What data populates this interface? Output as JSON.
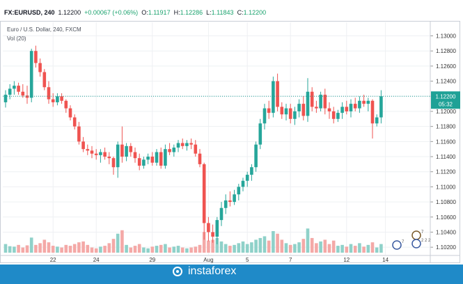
{
  "header": {
    "symbol": "FX:EURUSD, 240",
    "last": "1.12200",
    "change": "+0.00067 (+0.06%)",
    "o_label": "O:",
    "o_value": "1.11917",
    "h_label": "H:",
    "h_value": "1.12286",
    "l_label": "L:",
    "l_value": "1.11843",
    "c_label": "C:",
    "c_value": "1.12200"
  },
  "legend": {
    "title": "Euro / U.S. Dollar, 240, FXCM",
    "volume": "Vol (20)"
  },
  "price_tag": {
    "price": "1.12200",
    "countdown": "05:32"
  },
  "watermark": "instaforex",
  "event_flags": [
    "7",
    "2 2 2",
    "7"
  ],
  "colors": {
    "up": "#26a69a",
    "down": "#ef5350",
    "up_vol": "#8fd1c9",
    "down_vol": "#f4a9a7",
    "grid": "#eef0f3",
    "axis_text": "#333333",
    "footer": "#1f8ac8",
    "price_tag": "#1fa196"
  },
  "chart_data": {
    "type": "candlestick",
    "y_ticks": [
      "1.13000",
      "1.12800",
      "1.12600",
      "1.12400",
      "1.12200",
      "1.12000",
      "1.11800",
      "1.11600",
      "1.11400",
      "1.11200",
      "1.11000",
      "1.10800",
      "1.10600",
      "1.10400",
      "1.10200"
    ],
    "ylim": [
      1.101,
      1.1318
    ],
    "x_ticks": [
      {
        "label": "22",
        "index": 11
      },
      {
        "label": "24",
        "index": 21
      },
      {
        "label": "29",
        "index": 34
      },
      {
        "label": "Aug",
        "index": 47
      },
      {
        "label": "5",
        "index": 56
      },
      {
        "label": "7",
        "index": 66
      },
      {
        "label": "12",
        "index": 79
      },
      {
        "label": "14",
        "index": 88
      }
    ],
    "last_price": 1.122,
    "candles": [
      {
        "o": 1.1212,
        "h": 1.1228,
        "l": 1.1205,
        "c": 1.1222,
        "v": 20
      },
      {
        "o": 1.1222,
        "h": 1.1236,
        "l": 1.1216,
        "c": 1.123,
        "v": 15
      },
      {
        "o": 1.123,
        "h": 1.124,
        "l": 1.1222,
        "c": 1.1234,
        "v": 14
      },
      {
        "o": 1.1234,
        "h": 1.1238,
        "l": 1.1222,
        "c": 1.1226,
        "v": 18
      },
      {
        "o": 1.1226,
        "h": 1.1236,
        "l": 1.1218,
        "c": 1.1221,
        "v": 12
      },
      {
        "o": 1.1221,
        "h": 1.1234,
        "l": 1.121,
        "c": 1.1218,
        "v": 17
      },
      {
        "o": 1.1218,
        "h": 1.1283,
        "l": 1.1212,
        "c": 1.128,
        "v": 35
      },
      {
        "o": 1.128,
        "h": 1.1287,
        "l": 1.1258,
        "c": 1.1264,
        "v": 18
      },
      {
        "o": 1.1264,
        "h": 1.127,
        "l": 1.1246,
        "c": 1.1252,
        "v": 22
      },
      {
        "o": 1.1252,
        "h": 1.1256,
        "l": 1.1228,
        "c": 1.1232,
        "v": 30
      },
      {
        "o": 1.1232,
        "h": 1.124,
        "l": 1.121,
        "c": 1.1216,
        "v": 24
      },
      {
        "o": 1.1216,
        "h": 1.1224,
        "l": 1.1206,
        "c": 1.1212,
        "v": 16
      },
      {
        "o": 1.1212,
        "h": 1.1224,
        "l": 1.1208,
        "c": 1.122,
        "v": 14
      },
      {
        "o": 1.122,
        "h": 1.1224,
        "l": 1.121,
        "c": 1.1214,
        "v": 12
      },
      {
        "o": 1.1214,
        "h": 1.1216,
        "l": 1.1198,
        "c": 1.1204,
        "v": 18
      },
      {
        "o": 1.1204,
        "h": 1.1208,
        "l": 1.1188,
        "c": 1.1192,
        "v": 16
      },
      {
        "o": 1.1192,
        "h": 1.1196,
        "l": 1.1176,
        "c": 1.118,
        "v": 20
      },
      {
        "o": 1.118,
        "h": 1.1186,
        "l": 1.1156,
        "c": 1.116,
        "v": 24
      },
      {
        "o": 1.116,
        "h": 1.1166,
        "l": 1.1146,
        "c": 1.115,
        "v": 26
      },
      {
        "o": 1.115,
        "h": 1.1156,
        "l": 1.1142,
        "c": 1.1148,
        "v": 18
      },
      {
        "o": 1.1148,
        "h": 1.1154,
        "l": 1.1138,
        "c": 1.1144,
        "v": 12
      },
      {
        "o": 1.1144,
        "h": 1.115,
        "l": 1.1136,
        "c": 1.1142,
        "v": 10
      },
      {
        "o": 1.1142,
        "h": 1.115,
        "l": 1.1132,
        "c": 1.1146,
        "v": 14
      },
      {
        "o": 1.1146,
        "h": 1.1152,
        "l": 1.1136,
        "c": 1.114,
        "v": 16
      },
      {
        "o": 1.114,
        "h": 1.1146,
        "l": 1.113,
        "c": 1.1138,
        "v": 22
      },
      {
        "o": 1.1138,
        "h": 1.114,
        "l": 1.1116,
        "c": 1.1126,
        "v": 32
      },
      {
        "o": 1.1126,
        "h": 1.116,
        "l": 1.1112,
        "c": 1.1156,
        "v": 44
      },
      {
        "o": 1.1156,
        "h": 1.118,
        "l": 1.1132,
        "c": 1.114,
        "v": 52
      },
      {
        "o": 1.114,
        "h": 1.1158,
        "l": 1.1134,
        "c": 1.1154,
        "v": 18
      },
      {
        "o": 1.1154,
        "h": 1.1158,
        "l": 1.114,
        "c": 1.1146,
        "v": 12
      },
      {
        "o": 1.1146,
        "h": 1.1152,
        "l": 1.1132,
        "c": 1.1138,
        "v": 16
      },
      {
        "o": 1.1138,
        "h": 1.1144,
        "l": 1.1122,
        "c": 1.1128,
        "v": 20
      },
      {
        "o": 1.1128,
        "h": 1.114,
        "l": 1.1124,
        "c": 1.1136,
        "v": 12
      },
      {
        "o": 1.1136,
        "h": 1.1144,
        "l": 1.113,
        "c": 1.114,
        "v": 10
      },
      {
        "o": 1.114,
        "h": 1.1146,
        "l": 1.1128,
        "c": 1.1132,
        "v": 14
      },
      {
        "o": 1.1132,
        "h": 1.115,
        "l": 1.1128,
        "c": 1.1146,
        "v": 16
      },
      {
        "o": 1.1146,
        "h": 1.1152,
        "l": 1.1124,
        "c": 1.1128,
        "v": 18
      },
      {
        "o": 1.1128,
        "h": 1.1156,
        "l": 1.1124,
        "c": 1.115,
        "v": 20
      },
      {
        "o": 1.115,
        "h": 1.1158,
        "l": 1.1142,
        "c": 1.1146,
        "v": 12
      },
      {
        "o": 1.1146,
        "h": 1.1156,
        "l": 1.114,
        "c": 1.1152,
        "v": 14
      },
      {
        "o": 1.1152,
        "h": 1.1162,
        "l": 1.1146,
        "c": 1.1158,
        "v": 16
      },
      {
        "o": 1.1158,
        "h": 1.1164,
        "l": 1.115,
        "c": 1.1154,
        "v": 12
      },
      {
        "o": 1.1154,
        "h": 1.1162,
        "l": 1.1148,
        "c": 1.1158,
        "v": 10
      },
      {
        "o": 1.1158,
        "h": 1.1164,
        "l": 1.115,
        "c": 1.1156,
        "v": 12
      },
      {
        "o": 1.1156,
        "h": 1.1162,
        "l": 1.114,
        "c": 1.1144,
        "v": 14
      },
      {
        "o": 1.1144,
        "h": 1.115,
        "l": 1.1126,
        "c": 1.113,
        "v": 18
      },
      {
        "o": 1.113,
        "h": 1.1132,
        "l": 1.103,
        "c": 1.1052,
        "v": 48
      },
      {
        "o": 1.1052,
        "h": 1.106,
        "l": 1.1028,
        "c": 1.104,
        "v": 28
      },
      {
        "o": 1.104,
        "h": 1.105,
        "l": 1.1026,
        "c": 1.1034,
        "v": 30
      },
      {
        "o": 1.1034,
        "h": 1.106,
        "l": 1.1024,
        "c": 1.1056,
        "v": 34
      },
      {
        "o": 1.1056,
        "h": 1.108,
        "l": 1.1048,
        "c": 1.1072,
        "v": 26
      },
      {
        "o": 1.1072,
        "h": 1.109,
        "l": 1.1064,
        "c": 1.1082,
        "v": 20
      },
      {
        "o": 1.1082,
        "h": 1.1094,
        "l": 1.1074,
        "c": 1.108,
        "v": 16
      },
      {
        "o": 1.108,
        "h": 1.1096,
        "l": 1.1076,
        "c": 1.109,
        "v": 18
      },
      {
        "o": 1.109,
        "h": 1.1104,
        "l": 1.1082,
        "c": 1.11,
        "v": 22
      },
      {
        "o": 1.11,
        "h": 1.1112,
        "l": 1.1094,
        "c": 1.1108,
        "v": 26
      },
      {
        "o": 1.1108,
        "h": 1.112,
        "l": 1.11,
        "c": 1.1116,
        "v": 20
      },
      {
        "o": 1.1116,
        "h": 1.113,
        "l": 1.1108,
        "c": 1.1126,
        "v": 24
      },
      {
        "o": 1.1126,
        "h": 1.116,
        "l": 1.112,
        "c": 1.1156,
        "v": 30
      },
      {
        "o": 1.1156,
        "h": 1.119,
        "l": 1.115,
        "c": 1.1184,
        "v": 34
      },
      {
        "o": 1.1184,
        "h": 1.121,
        "l": 1.1176,
        "c": 1.1204,
        "v": 38
      },
      {
        "o": 1.1204,
        "h": 1.1214,
        "l": 1.119,
        "c": 1.1198,
        "v": 28
      },
      {
        "o": 1.1198,
        "h": 1.1246,
        "l": 1.1192,
        "c": 1.124,
        "v": 50
      },
      {
        "o": 1.124,
        "h": 1.125,
        "l": 1.12,
        "c": 1.1206,
        "v": 44
      },
      {
        "o": 1.1206,
        "h": 1.1212,
        "l": 1.119,
        "c": 1.1196,
        "v": 30
      },
      {
        "o": 1.1196,
        "h": 1.121,
        "l": 1.1188,
        "c": 1.1204,
        "v": 22
      },
      {
        "o": 1.1204,
        "h": 1.121,
        "l": 1.1184,
        "c": 1.119,
        "v": 18
      },
      {
        "o": 1.119,
        "h": 1.1206,
        "l": 1.1182,
        "c": 1.12,
        "v": 20
      },
      {
        "o": 1.12,
        "h": 1.1216,
        "l": 1.1192,
        "c": 1.121,
        "v": 24
      },
      {
        "o": 1.121,
        "h": 1.122,
        "l": 1.1188,
        "c": 1.1194,
        "v": 32
      },
      {
        "o": 1.1194,
        "h": 1.1244,
        "l": 1.1186,
        "c": 1.1226,
        "v": 56
      },
      {
        "o": 1.1226,
        "h": 1.1232,
        "l": 1.12,
        "c": 1.1206,
        "v": 34
      },
      {
        "o": 1.1206,
        "h": 1.1214,
        "l": 1.1198,
        "c": 1.1204,
        "v": 22
      },
      {
        "o": 1.1204,
        "h": 1.1226,
        "l": 1.12,
        "c": 1.1222,
        "v": 26
      },
      {
        "o": 1.1222,
        "h": 1.123,
        "l": 1.1196,
        "c": 1.1204,
        "v": 30
      },
      {
        "o": 1.1204,
        "h": 1.1212,
        "l": 1.119,
        "c": 1.12,
        "v": 20
      },
      {
        "o": 1.12,
        "h": 1.1206,
        "l": 1.1184,
        "c": 1.119,
        "v": 28
      },
      {
        "o": 1.119,
        "h": 1.1202,
        "l": 1.1186,
        "c": 1.1198,
        "v": 16
      },
      {
        "o": 1.1198,
        "h": 1.1212,
        "l": 1.119,
        "c": 1.1206,
        "v": 18
      },
      {
        "o": 1.1206,
        "h": 1.1214,
        "l": 1.1196,
        "c": 1.12,
        "v": 14
      },
      {
        "o": 1.12,
        "h": 1.1216,
        "l": 1.1192,
        "c": 1.121,
        "v": 20
      },
      {
        "o": 1.121,
        "h": 1.1218,
        "l": 1.12,
        "c": 1.1204,
        "v": 16
      },
      {
        "o": 1.1204,
        "h": 1.122,
        "l": 1.1198,
        "c": 1.1214,
        "v": 22
      },
      {
        "o": 1.1214,
        "h": 1.1222,
        "l": 1.1206,
        "c": 1.121,
        "v": 14
      },
      {
        "o": 1.121,
        "h": 1.1218,
        "l": 1.12,
        "c": 1.1214,
        "v": 18
      },
      {
        "o": 1.1214,
        "h": 1.1216,
        "l": 1.1164,
        "c": 1.1184,
        "v": 24
      },
      {
        "o": 1.1184,
        "h": 1.1196,
        "l": 1.118,
        "c": 1.1192,
        "v": 12
      },
      {
        "o": 1.1192,
        "h": 1.1228,
        "l": 1.1184,
        "c": 1.122,
        "v": 20
      }
    ]
  }
}
